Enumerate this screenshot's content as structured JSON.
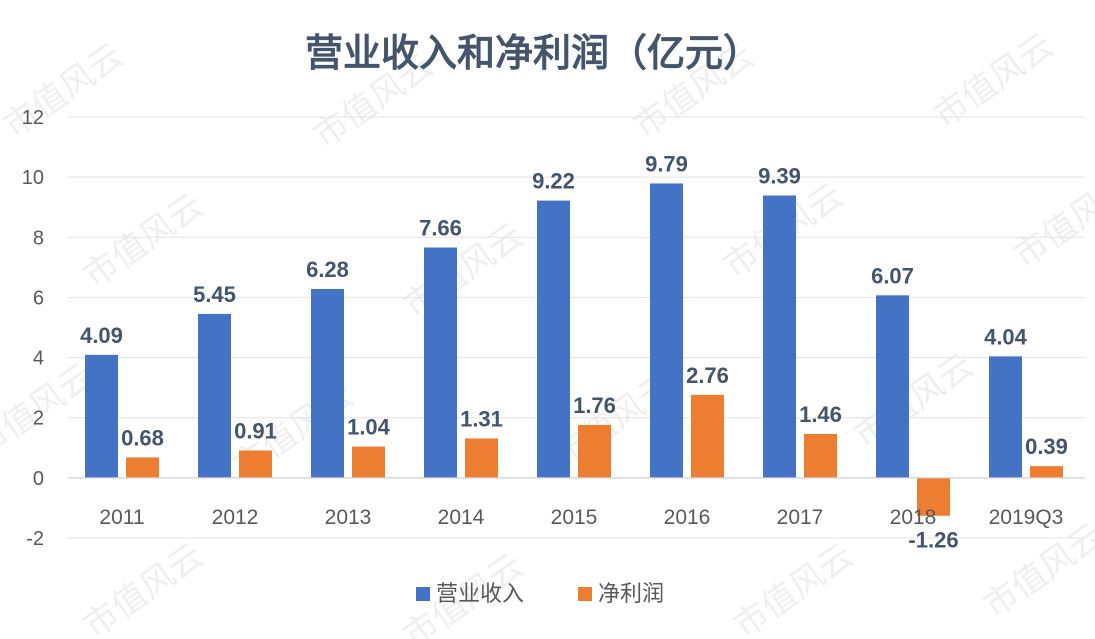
{
  "chart_data": {
    "type": "bar",
    "title": "营业收入和净利润（亿元）",
    "categories": [
      "2011",
      "2012",
      "2013",
      "2014",
      "2015",
      "2016",
      "2017",
      "2018",
      "2019Q3"
    ],
    "series": [
      {
        "name": "营业收入",
        "values": [
          4.09,
          5.45,
          6.28,
          7.66,
          9.22,
          9.79,
          9.39,
          6.07,
          4.04
        ],
        "color": "#4472c4"
      },
      {
        "name": "净利润",
        "values": [
          0.68,
          0.91,
          1.04,
          1.31,
          1.76,
          2.76,
          1.46,
          -1.26,
          0.39
        ],
        "color": "#ed7d31"
      }
    ],
    "value_labels": [
      [
        "4.09",
        "5.45",
        "6.28",
        "7.66",
        "9.22",
        "9.79",
        "9.39",
        "6.07",
        "4.04"
      ],
      [
        "0.68",
        "0.91",
        "1.04",
        "1.31",
        "1.76",
        "2.76",
        "1.46",
        "-1.26",
        "0.39"
      ]
    ],
    "ylim": [
      -2,
      12
    ],
    "yticks": [
      -2,
      0,
      2,
      4,
      6,
      8,
      10,
      12
    ],
    "ytick_labels": [
      "-2",
      "0",
      "2",
      "4",
      "6",
      "8",
      "10",
      "12"
    ],
    "grid": true,
    "legend_position": "bottom",
    "watermark": "市值风云"
  }
}
